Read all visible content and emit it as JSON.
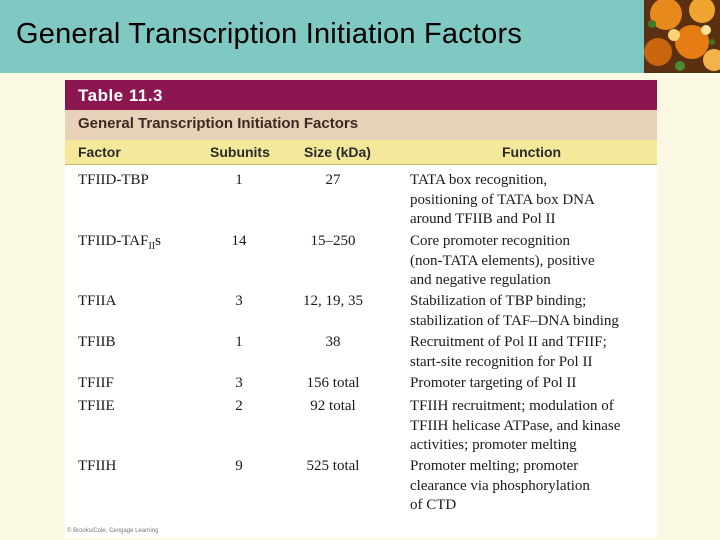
{
  "slide": {
    "title": "General Transcription Initiation Factors",
    "colors": {
      "title_bar": "#7fc9c2",
      "background": "#fbf8e4",
      "table_header": "#8b1650",
      "caption_band": "#e7d1b9",
      "column_band": "#f4e89a"
    }
  },
  "table": {
    "number_label": "Table 11.3",
    "caption": "General Transcription Initiation Factors",
    "columns": {
      "factor": "Factor",
      "subunits": "Subunits",
      "size": "Size (kDa)",
      "function": "Function"
    },
    "rows": [
      {
        "factor": "TFIID-TBP",
        "subunits": "1",
        "size": "27",
        "function": [
          "TATA box recognition,",
          "positioning of TATA box DNA",
          "around TFIIB and Pol II"
        ]
      },
      {
        "factor_main": "TFIID-TAF",
        "factor_sub": "II",
        "factor_suffix": "s",
        "subunits": "14",
        "size": "15–250",
        "function": [
          "Core promoter recognition",
          "(non-TATA elements), positive",
          "and negative regulation"
        ]
      },
      {
        "factor": "TFIIA",
        "subunits": "3",
        "size": "12, 19, 35",
        "function": [
          "Stabilization of TBP binding;",
          "stabilization of TAF–DNA binding"
        ]
      },
      {
        "factor": "TFIIB",
        "subunits": "1",
        "size": "38",
        "function": [
          "Recruitment of Pol II and TFIIF;",
          "start-site recognition for Pol II"
        ]
      },
      {
        "factor": "TFIIF",
        "subunits": "3",
        "size": "156 total",
        "function": [
          "Promoter targeting of Pol II"
        ]
      },
      {
        "factor": "TFIIE",
        "subunits": "2",
        "size": "92 total",
        "function": [
          "TFIIH recruitment; modulation of",
          "TFIIH helicase ATPase, and kinase",
          "activities; promoter melting"
        ]
      },
      {
        "factor": "TFIIH",
        "subunits": "9",
        "size": "525 total",
        "function": [
          "Promoter melting; promoter",
          "clearance via phosphorylation",
          "of CTD"
        ]
      }
    ],
    "copyright": "© Brooks/Cole, Cengage Learning"
  }
}
